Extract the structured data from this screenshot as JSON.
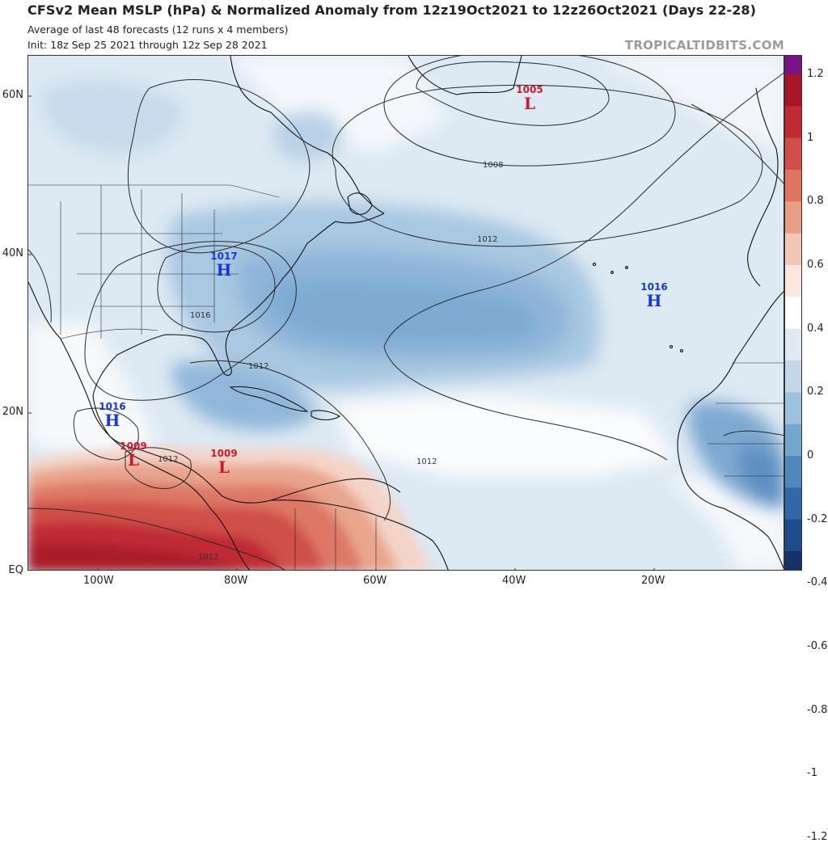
{
  "header": {
    "title": "CFSv2 Mean MSLP (hPa) & Normalized Anomaly from 12z19Oct2021 to 12z26Oct2021 (Days 22-28)",
    "subtitle_1": "Average of last 48 forecasts (12 runs x 4 members)",
    "subtitle_2": "Init: 18z Sep 25 2021 through 12z Sep 28 2021",
    "brand": "TROPICALTIDBITS.COM"
  },
  "axes": {
    "lat_labels": [
      "60N",
      "40N",
      "20N",
      "EQ"
    ],
    "lon_labels": [
      "100W",
      "80W",
      "60W",
      "40W",
      "20W"
    ]
  },
  "colorbar": {
    "labels": [
      "1.2",
      "1",
      "0.8",
      "0.6",
      "0.4",
      "0.2",
      "0",
      "-0.2",
      "-0.4",
      "-0.6",
      "-0.8",
      "-1",
      "-1.2"
    ],
    "colors": [
      "#7a1385",
      "#a81626",
      "#c22a33",
      "#d14f48",
      "#de7561",
      "#e99d83",
      "#f3c7b5",
      "#fbe7df",
      "#ffffff",
      "#dfe9f2",
      "#c3d7e8",
      "#9ec2dd",
      "#75a6ce",
      "#4f88bd",
      "#2f69a9",
      "#1d4c8c",
      "#13326a"
    ]
  },
  "contour_labels": {
    "c1008": "1008",
    "c1012a": "1012",
    "c1016": "1016",
    "c1012b": "1012",
    "c1012c": "1012",
    "c1012d": "1012",
    "c1012e": "1012"
  },
  "pressure_centers": [
    {
      "type": "L",
      "value": "1005"
    },
    {
      "type": "H",
      "value": "1017"
    },
    {
      "type": "H",
      "value": "1016"
    },
    {
      "type": "H",
      "value": "1016"
    },
    {
      "type": "L",
      "value": "1009"
    },
    {
      "type": "L",
      "value": "1009"
    }
  ]
}
